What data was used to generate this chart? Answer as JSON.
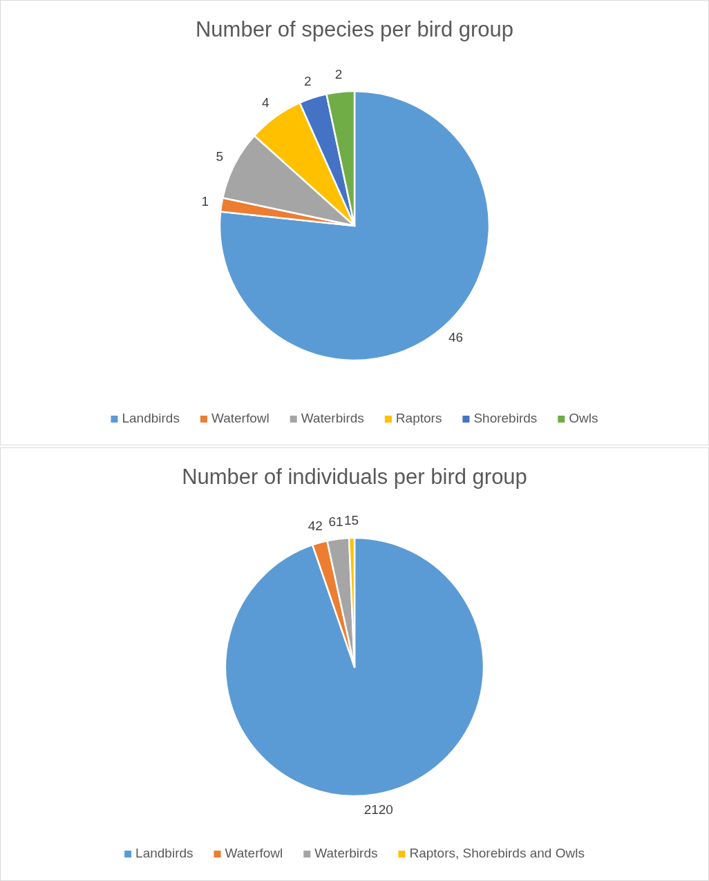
{
  "chart_data": [
    {
      "type": "pie",
      "title": "Number of species per bird group",
      "categories": [
        "Landbirds",
        "Waterfowl",
        "Waterbirds",
        "Raptors",
        "Shorebirds",
        "Owls"
      ],
      "values": [
        46,
        1,
        5,
        4,
        2,
        2
      ],
      "colors": [
        "#5b9bd5",
        "#ed7d31",
        "#a5a5a5",
        "#ffc000",
        "#4472c4",
        "#70ad47"
      ],
      "data_labels": true,
      "legend": "bottom"
    },
    {
      "type": "pie",
      "title": "Number of individuals per bird group",
      "categories": [
        "Landbirds",
        "Waterfowl",
        "Waterbirds",
        "Raptors, Shorebirds and Owls"
      ],
      "values": [
        2120,
        42,
        61,
        15
      ],
      "colors": [
        "#5b9bd5",
        "#ed7d31",
        "#a5a5a5",
        "#ffc000"
      ],
      "data_labels": true,
      "legend": "bottom"
    }
  ]
}
